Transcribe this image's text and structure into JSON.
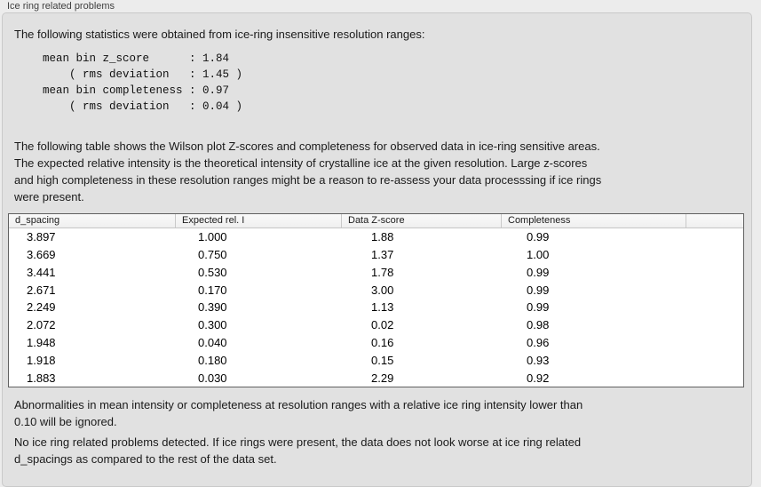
{
  "window": {
    "title": "Ice ring related problems"
  },
  "panel": {
    "intro": "The following statistics were obtained from ice-ring insensitive resolution ranges:",
    "stats_lines": [
      "mean bin z_score      : 1.84",
      "    ( rms deviation   : 1.45 )",
      "mean bin completeness : 0.97",
      "    ( rms deviation   : 0.04 )"
    ],
    "stats_values": {
      "mean_bin_z_score": 1.84,
      "z_score_rms_deviation": 1.45,
      "mean_bin_completeness": 0.97,
      "completeness_rms_deviation": 0.04
    },
    "description_lines": [
      "The following table shows the Wilson plot Z-scores and completeness for observed data in ice-ring sensitive areas.",
      "The expected relative intensity is the theoretical intensity of crystalline ice at the given resolution. Large z-scores",
      "and high completeness in these resolution ranges might be a reason to re-assess your data processsing if ice rings",
      "were present."
    ],
    "table": {
      "columns": [
        "d_spacing",
        "Expected rel. I",
        "Data Z-score",
        "Completeness"
      ],
      "rows": [
        [
          "3.897",
          "1.000",
          "1.88",
          "0.99"
        ],
        [
          "3.669",
          "0.750",
          "1.37",
          "1.00"
        ],
        [
          "3.441",
          "0.530",
          "1.78",
          "0.99"
        ],
        [
          "2.671",
          "0.170",
          "3.00",
          "0.99"
        ],
        [
          "2.249",
          "0.390",
          "1.13",
          "0.99"
        ],
        [
          "2.072",
          "0.300",
          "0.02",
          "0.98"
        ],
        [
          "1.948",
          "0.040",
          "0.16",
          "0.96"
        ],
        [
          "1.918",
          "0.180",
          "0.15",
          "0.93"
        ],
        [
          "1.883",
          "0.030",
          "2.29",
          "0.92"
        ]
      ]
    },
    "note_lines": [
      "Abnormalities in mean intensity or completeness at resolution ranges with a relative ice ring intensity lower than",
      "0.10 will be ignored."
    ],
    "conclusion_lines": [
      "No ice ring related problems detected. If ice rings were present, the data does not look worse at ice ring related",
      "d_spacings as compared to the rest of the data set."
    ]
  },
  "colors": {
    "window_background": "#ececec",
    "panel_background": "#e1e1e1",
    "panel_border": "#c9c9c9",
    "table_border": "#606060",
    "table_header_background": "#f4f4f4",
    "table_body_background": "#ffffff",
    "text": "#1a1a1a"
  }
}
